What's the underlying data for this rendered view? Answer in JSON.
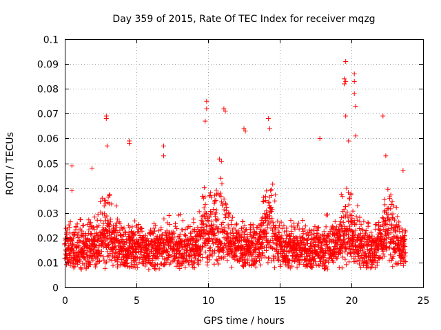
{
  "chart_data": {
    "type": "scatter",
    "title": "Day 359 of 2015, Rate Of TEC Index for receiver mqzg",
    "xlabel": "GPS time / hours",
    "ylabel": "ROTI / TECUs",
    "xlim": [
      0,
      25
    ],
    "ylim": [
      0,
      0.1
    ],
    "x_ticks": [
      "0",
      "5",
      "10",
      "15",
      "20",
      "25"
    ],
    "y_ticks": [
      "0",
      "0.01",
      "0.02",
      "0.03",
      "0.04",
      "0.05",
      "0.06",
      "0.07",
      "0.08",
      "0.09",
      "0.1"
    ],
    "grid": true,
    "marker": "+",
    "color": "#ff0000",
    "series": [
      {
        "x_step_hours": 0.0333,
        "x_start": 0.0,
        "x_end": 23.8,
        "base_level": 0.013,
        "notable_points": [
          {
            "x": 0.5,
            "y": 0.049
          },
          {
            "x": 0.5,
            "y": 0.039
          },
          {
            "x": 1.9,
            "y": 0.048
          },
          {
            "x": 2.9,
            "y": 0.069
          },
          {
            "x": 2.9,
            "y": 0.068
          },
          {
            "x": 2.95,
            "y": 0.057
          },
          {
            "x": 4.5,
            "y": 0.059
          },
          {
            "x": 4.5,
            "y": 0.058
          },
          {
            "x": 6.9,
            "y": 0.057
          },
          {
            "x": 6.9,
            "y": 0.053
          },
          {
            "x": 9.9,
            "y": 0.075
          },
          {
            "x": 9.9,
            "y": 0.072
          },
          {
            "x": 9.8,
            "y": 0.067
          },
          {
            "x": 11.1,
            "y": 0.072
          },
          {
            "x": 11.2,
            "y": 0.071
          },
          {
            "x": 12.5,
            "y": 0.064
          },
          {
            "x": 12.6,
            "y": 0.063
          },
          {
            "x": 14.2,
            "y": 0.068
          },
          {
            "x": 14.3,
            "y": 0.064
          },
          {
            "x": 17.8,
            "y": 0.06
          },
          {
            "x": 19.6,
            "y": 0.091
          },
          {
            "x": 19.5,
            "y": 0.084
          },
          {
            "x": 19.6,
            "y": 0.083
          },
          {
            "x": 19.5,
            "y": 0.082
          },
          {
            "x": 20.2,
            "y": 0.086
          },
          {
            "x": 20.2,
            "y": 0.083
          },
          {
            "x": 20.2,
            "y": 0.078
          },
          {
            "x": 20.3,
            "y": 0.073
          },
          {
            "x": 20.3,
            "y": 0.061
          },
          {
            "x": 19.6,
            "y": 0.069
          },
          {
            "x": 19.8,
            "y": 0.059
          },
          {
            "x": 22.2,
            "y": 0.069
          },
          {
            "x": 22.4,
            "y": 0.053
          },
          {
            "x": 23.6,
            "y": 0.047
          }
        ],
        "activity_peaks": [
          {
            "x": 2.8,
            "level": 0.03
          },
          {
            "x": 9.8,
            "level": 0.025
          },
          {
            "x": 10.9,
            "level": 0.04
          },
          {
            "x": 14.2,
            "level": 0.033
          },
          {
            "x": 19.8,
            "level": 0.028
          },
          {
            "x": 22.6,
            "level": 0.03
          }
        ]
      }
    ]
  }
}
